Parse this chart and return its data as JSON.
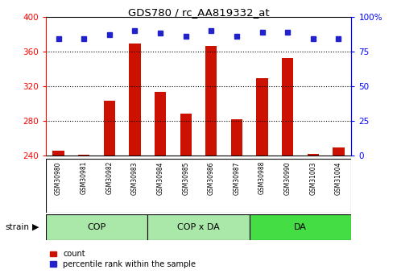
{
  "title": "GDS780 / rc_AA819332_at",
  "samples": [
    "GSM30980",
    "GSM30981",
    "GSM30982",
    "GSM30983",
    "GSM30984",
    "GSM30985",
    "GSM30986",
    "GSM30987",
    "GSM30988",
    "GSM30990",
    "GSM31003",
    "GSM31004"
  ],
  "counts": [
    246,
    241,
    303,
    369,
    313,
    288,
    366,
    282,
    329,
    352,
    242,
    249
  ],
  "percentiles": [
    84,
    84,
    87,
    90,
    88,
    86,
    90,
    86,
    89,
    89,
    84,
    84
  ],
  "groups": [
    {
      "label": "COP",
      "start": 0,
      "end": 4
    },
    {
      "label": "COP x DA",
      "start": 4,
      "end": 8
    },
    {
      "label": "DA",
      "start": 8,
      "end": 12
    }
  ],
  "group_colors": [
    "#aae8aa",
    "#aae8aa",
    "#44dd44"
  ],
  "ylim_left": [
    240,
    400
  ],
  "ylim_right": [
    0,
    100
  ],
  "yticks_left": [
    240,
    280,
    320,
    360,
    400
  ],
  "yticks_right": [
    0,
    25,
    50,
    75,
    100
  ],
  "ytick_right_labels": [
    "0",
    "25",
    "50",
    "75",
    "100%"
  ],
  "bar_color": "#cc1100",
  "dot_color": "#2222cc",
  "bar_bottom": 240,
  "grid_lines": [
    280,
    320,
    360
  ],
  "bg_color": "#cccccc",
  "count_label": "count",
  "percentile_label": "percentile rank within the sample",
  "strain_label": "strain"
}
